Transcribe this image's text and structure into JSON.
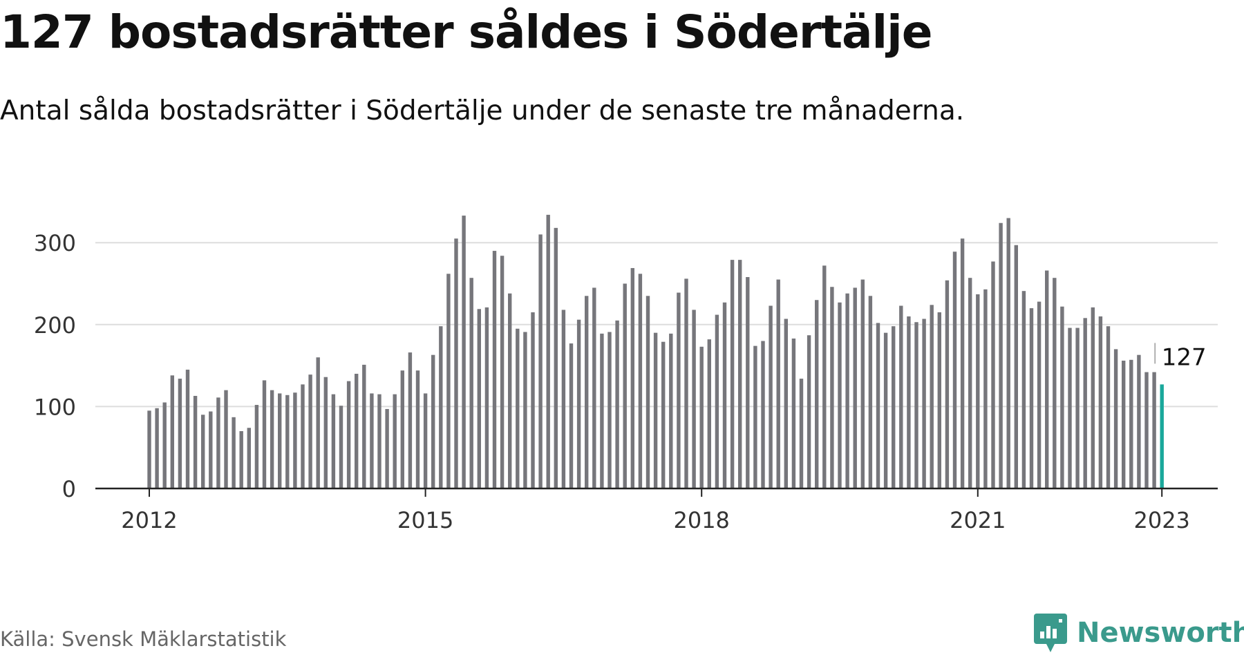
{
  "title": "127 bostadsrätter såldes i Södertälje",
  "subtitle": "Antal sålda bostadsrätter i Södertälje under de senaste tre månaderna.",
  "source": "Källa: Svensk Mäklarstatistik",
  "brand": {
    "name": "Newsworthy",
    "icon": "newsworthy-logo-icon",
    "color": "#3a9a8c"
  },
  "colors": {
    "bar": "#76767b",
    "highlight": "#1aa89b",
    "grid": "#dddddd",
    "axis": "#222222"
  },
  "chart_data": {
    "type": "bar",
    "title": "127 bostadsrätter såldes i Södertälje",
    "xlabel": "",
    "ylabel": "",
    "x_start": "2012-01",
    "frequency": "monthly",
    "x_ticks": [
      "2012",
      "2015",
      "2018",
      "2021",
      "2023"
    ],
    "y_ticks": [
      0,
      100,
      200,
      300
    ],
    "ylim": [
      0,
      350
    ],
    "grid": true,
    "highlight_last": true,
    "last_label": "127",
    "values": [
      95,
      98,
      105,
      138,
      134,
      145,
      113,
      90,
      94,
      111,
      120,
      87,
      70,
      74,
      102,
      132,
      120,
      116,
      114,
      117,
      127,
      139,
      160,
      136,
      115,
      101,
      131,
      140,
      151,
      116,
      115,
      97,
      115,
      144,
      166,
      144,
      116,
      163,
      198,
      262,
      305,
      333,
      257,
      219,
      221,
      290,
      284,
      238,
      195,
      191,
      215,
      310,
      334,
      318,
      218,
      177,
      206,
      235,
      245,
      189,
      191,
      205,
      250,
      269,
      262,
      235,
      190,
      179,
      189,
      239,
      256,
      218,
      173,
      182,
      212,
      227,
      279,
      279,
      258,
      174,
      180,
      223,
      255,
      207,
      183,
      134,
      187,
      230,
      272,
      246,
      227,
      238,
      245,
      255,
      235,
      202,
      190,
      198,
      223,
      210,
      203,
      207,
      224,
      215,
      254,
      289,
      305,
      257,
      237,
      243,
      277,
      324,
      330,
      297,
      241,
      220,
      228,
      266,
      257,
      222,
      196,
      196,
      208,
      221,
      210,
      198,
      170,
      156,
      157,
      163,
      142,
      142,
      127
    ]
  }
}
